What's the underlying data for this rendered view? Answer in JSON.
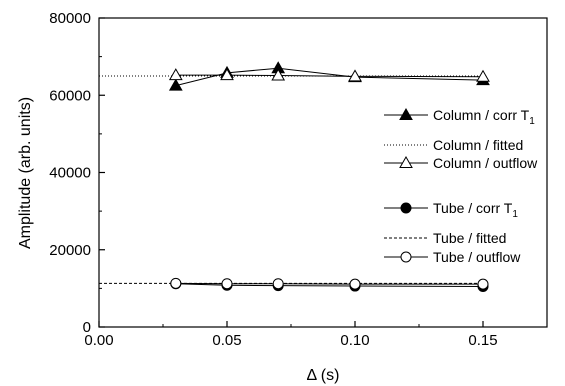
{
  "chart_data": {
    "type": "scatter",
    "title": "",
    "xlabel": "Δ (s)",
    "ylabel": "Amplitude (arb. units)",
    "xlim": [
      0.0,
      0.175
    ],
    "ylim": [
      0,
      80000
    ],
    "xticks": [
      "0.00",
      "0.05",
      "0.10",
      "0.15"
    ],
    "yticks": [
      "0",
      "20000",
      "40000",
      "60000",
      "80000"
    ],
    "xtick_values": [
      0.0,
      0.05,
      0.1,
      0.15
    ],
    "ytick_values": [
      0,
      20000,
      40000,
      60000,
      80000
    ],
    "grid": false,
    "legend_position": "right",
    "series": [
      {
        "name": "Column / corr T",
        "subscript": "1",
        "style": "filled-triangle-line",
        "x": [
          0.03,
          0.05,
          0.07,
          0.1,
          0.15
        ],
        "y": [
          62500,
          65800,
          67000,
          64700,
          63900
        ]
      },
      {
        "name": "Column / fitted",
        "style": "dotted",
        "x": [
          0.0,
          0.15
        ],
        "y": [
          65000,
          65000
        ]
      },
      {
        "name": "Column / outflow",
        "style": "open-triangle-line",
        "x": [
          0.03,
          0.05,
          0.07,
          0.1,
          0.15
        ],
        "y": [
          65200,
          65200,
          65100,
          64900,
          64800
        ]
      },
      {
        "name": "Tube / corr T",
        "subscript": "1",
        "style": "filled-circle-line",
        "x": [
          0.03,
          0.05,
          0.07,
          0.1,
          0.15
        ],
        "y": [
          11200,
          10800,
          10700,
          10600,
          10500
        ]
      },
      {
        "name": "Tube / fitted",
        "style": "dashed",
        "x": [
          0.0,
          0.15
        ],
        "y": [
          11300,
          11300
        ]
      },
      {
        "name": "Tube / outflow",
        "style": "open-circle-line",
        "x": [
          0.03,
          0.05,
          0.07,
          0.1,
          0.15
        ],
        "y": [
          11300,
          11200,
          11200,
          11100,
          11100
        ]
      }
    ]
  }
}
